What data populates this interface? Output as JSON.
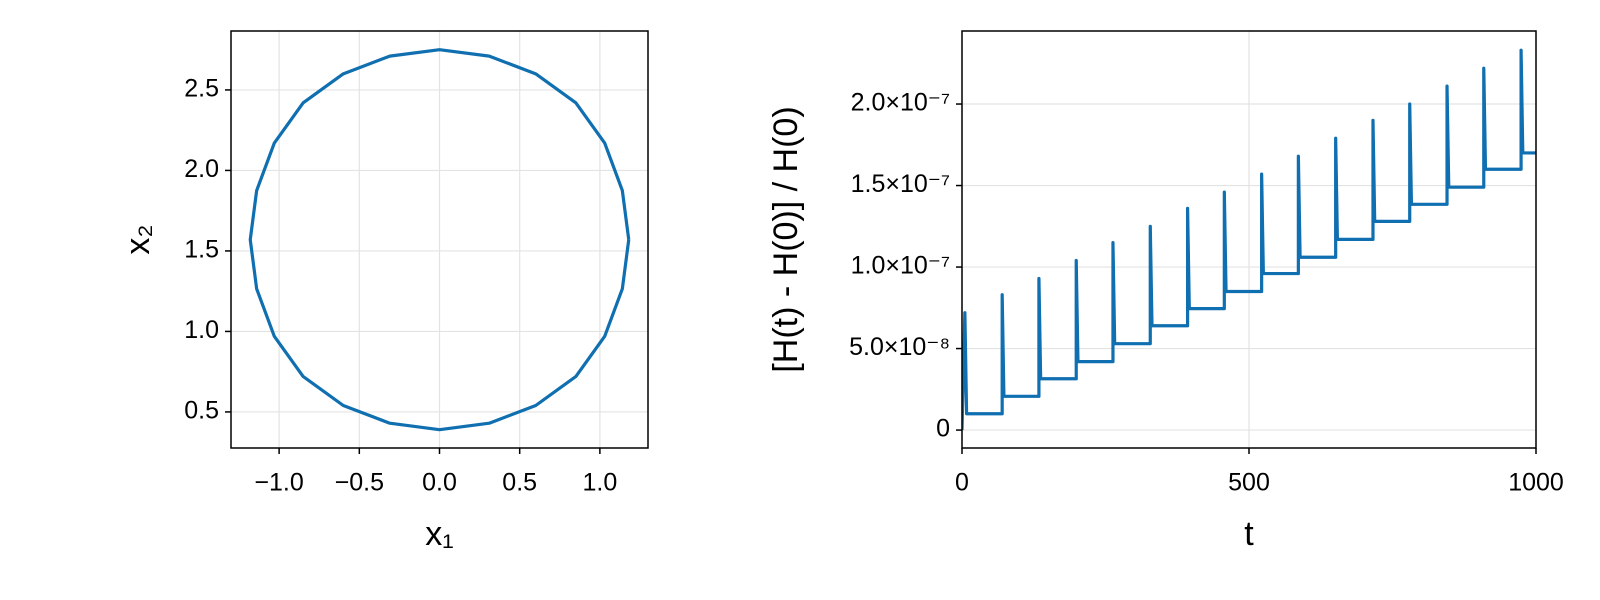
{
  "chart_data": [
    {
      "type": "line",
      "xlabel": "x₁",
      "ylabel": "x₂",
      "xlim": [
        -1.3,
        1.3
      ],
      "ylim": [
        0.276,
        2.866
      ],
      "xticks": [
        {
          "value": -1,
          "label": "−1.0"
        },
        {
          "value": -0.5,
          "label": "−0.5"
        },
        {
          "value": 0,
          "label": "0.0"
        },
        {
          "value": 0.5,
          "label": "0.5"
        },
        {
          "value": 1,
          "label": "1.0"
        }
      ],
      "yticks": [
        0.5,
        {
          "value": 1,
          "label": "1.0"
        },
        1.5,
        {
          "value": 2,
          "label": "2.0"
        },
        2.5
      ],
      "grid": true,
      "series": [
        {
          "color": "#0f6fb0",
          "x": [
            1.18,
            1.14,
            1.03,
            0.85,
            0.6,
            0.31,
            0,
            -0.31,
            -0.6,
            -0.85,
            -1.03,
            -1.14,
            -1.18,
            -1.14,
            -1.03,
            -0.85,
            -0.6,
            -0.31,
            0,
            0.31,
            0.6,
            0.85,
            1.03,
            1.14,
            1.18
          ],
          "values": [
            1.57,
            1.875,
            2.17,
            2.42,
            2.6,
            2.71,
            2.75,
            2.71,
            2.6,
            2.42,
            2.17,
            1.875,
            1.57,
            1.265,
            0.97,
            0.72,
            0.54,
            0.43,
            0.39,
            0.43,
            0.54,
            0.72,
            0.97,
            1.265,
            1.57
          ]
        }
      ]
    },
    {
      "type": "line",
      "xlabel": "t",
      "ylabel": "[H(t) - H(0)] / H(0)",
      "xlim": [
        0,
        1000
      ],
      "ylim": [
        -1.1e-08,
        2.448e-07
      ],
      "xticks": [
        0,
        500,
        1000
      ],
      "yticks": [
        0,
        {
          "value": 5e-08,
          "label": "5.0×10⁻⁸"
        },
        {
          "value": 1e-07,
          "label": "1.0×10⁻⁷"
        },
        {
          "value": 1.5e-07,
          "label": "1.5×10⁻⁷"
        },
        {
          "value": 2e-07,
          "label": "2.0×10⁻⁷"
        }
      ],
      "grid": true,
      "series": [
        {
          "color": "#0f6fb0",
          "x": [
            0,
            5,
            8,
            70,
            70,
            73,
            134,
            134,
            137,
            199,
            199,
            202,
            263,
            263,
            266,
            328,
            328,
            331,
            393,
            393,
            396,
            457,
            457,
            460,
            522,
            522,
            525,
            586,
            586,
            589,
            651,
            651,
            654,
            716,
            716,
            719,
            780,
            780,
            783,
            845,
            845,
            848,
            909,
            909,
            912,
            974,
            974,
            977,
            1000
          ],
          "values": [
            0,
            7.2e-08,
            1e-08,
            1e-08,
            8.3e-08,
            2.07e-08,
            2.07e-08,
            9.3e-08,
            3.15e-08,
            3.15e-08,
            1.04e-07,
            4.2e-08,
            4.2e-08,
            1.15e-07,
            5.3e-08,
            5.3e-08,
            1.25e-07,
            6.4e-08,
            6.4e-08,
            1.36e-07,
            7.45e-08,
            7.45e-08,
            1.46e-07,
            8.5e-08,
            8.5e-08,
            1.57e-07,
            9.6e-08,
            9.6e-08,
            1.68e-07,
            1.06e-07,
            1.06e-07,
            1.79e-07,
            1.17e-07,
            1.17e-07,
            1.9e-07,
            1.28e-07,
            1.28e-07,
            2e-07,
            1.385e-07,
            1.385e-07,
            2.11e-07,
            1.49e-07,
            1.49e-07,
            2.22e-07,
            1.6e-07,
            1.6e-07,
            2.33e-07,
            1.7e-07,
            1.7e-07
          ]
        }
      ]
    }
  ]
}
